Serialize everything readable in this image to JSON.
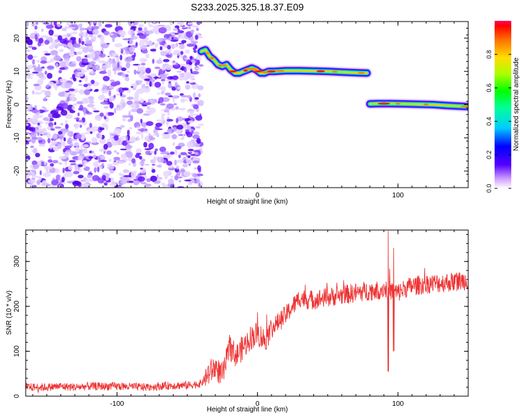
{
  "title": "S233.2025.325.18.37.E09",
  "chart_data": [
    {
      "type": "heatmap",
      "xlabel": "Height of straight line (km)",
      "ylabel": "Frequency (Hz)",
      "xlim": [
        -165,
        150
      ],
      "ylim": [
        -25,
        25
      ],
      "xticks": [
        -100,
        0,
        100
      ],
      "yticks": [
        -20,
        -10,
        0,
        10,
        20
      ],
      "colorbar": {
        "label": "Normalized spectral amplitude",
        "range": [
          0,
          1
        ],
        "ticks": [
          "0.0",
          "0.2",
          "0.4",
          "0.6",
          "0.8"
        ]
      },
      "noise_region": {
        "x_from": -165,
        "x_to": -40
      },
      "ridge": {
        "x": [
          -40,
          -37,
          -34,
          -31,
          -28,
          -25,
          -22,
          -19,
          -16,
          -13,
          -10,
          -7,
          -4,
          -1,
          2,
          5,
          8,
          12,
          20,
          30,
          40,
          50,
          60,
          70,
          78,
          80,
          85,
          95,
          105,
          115,
          125,
          135,
          145,
          150
        ],
        "y": [
          16,
          16.5,
          14.5,
          13.5,
          12,
          11.5,
          12,
          10.5,
          9.5,
          9.5,
          10,
          10.5,
          11,
          10.5,
          9.5,
          9.5,
          10,
          10,
          10.2,
          10.2,
          10.1,
          10,
          9.8,
          9.6,
          9.5,
          0.2,
          0.3,
          0.3,
          0.2,
          0.1,
          0,
          -0.3,
          -0.5,
          -0.6
        ]
      }
    },
    {
      "type": "line",
      "xlabel": "Height of straight line (km)",
      "ylabel": "SNR (10 * v/v)",
      "xlim": [
        -165,
        150
      ],
      "ylim": [
        0,
        370
      ],
      "xticks": [
        -100,
        0,
        100
      ],
      "yticks": [
        0,
        100,
        200,
        300
      ],
      "color": "#ee3333",
      "series": [
        {
          "x": [
            -165,
            -150,
            -140,
            -130,
            -120,
            -100,
            -80,
            -60,
            -50,
            -45,
            -40,
            -35,
            -30,
            -25,
            -22,
            -20,
            -15,
            -10,
            -5,
            0,
            5,
            10,
            15,
            20,
            25,
            28,
            30,
            35,
            40,
            50,
            60,
            70,
            80,
            85,
            90,
            95,
            100,
            105,
            110,
            120,
            130,
            140,
            150
          ],
          "values": [
            20,
            20,
            22,
            20,
            22,
            22,
            20,
            24,
            24,
            26,
            28,
            50,
            65,
            45,
            80,
            110,
            90,
            110,
            130,
            140,
            125,
            150,
            165,
            180,
            200,
            210,
            220,
            215,
            215,
            220,
            225,
            230,
            235,
            235,
            240,
            235,
            230,
            240,
            245,
            250,
            252,
            255,
            258
          ]
        }
      ],
      "spikes": [
        {
          "x": 93,
          "min": 55,
          "max": 368
        },
        {
          "x": 97,
          "min": 100,
          "max": 330
        }
      ]
    }
  ]
}
